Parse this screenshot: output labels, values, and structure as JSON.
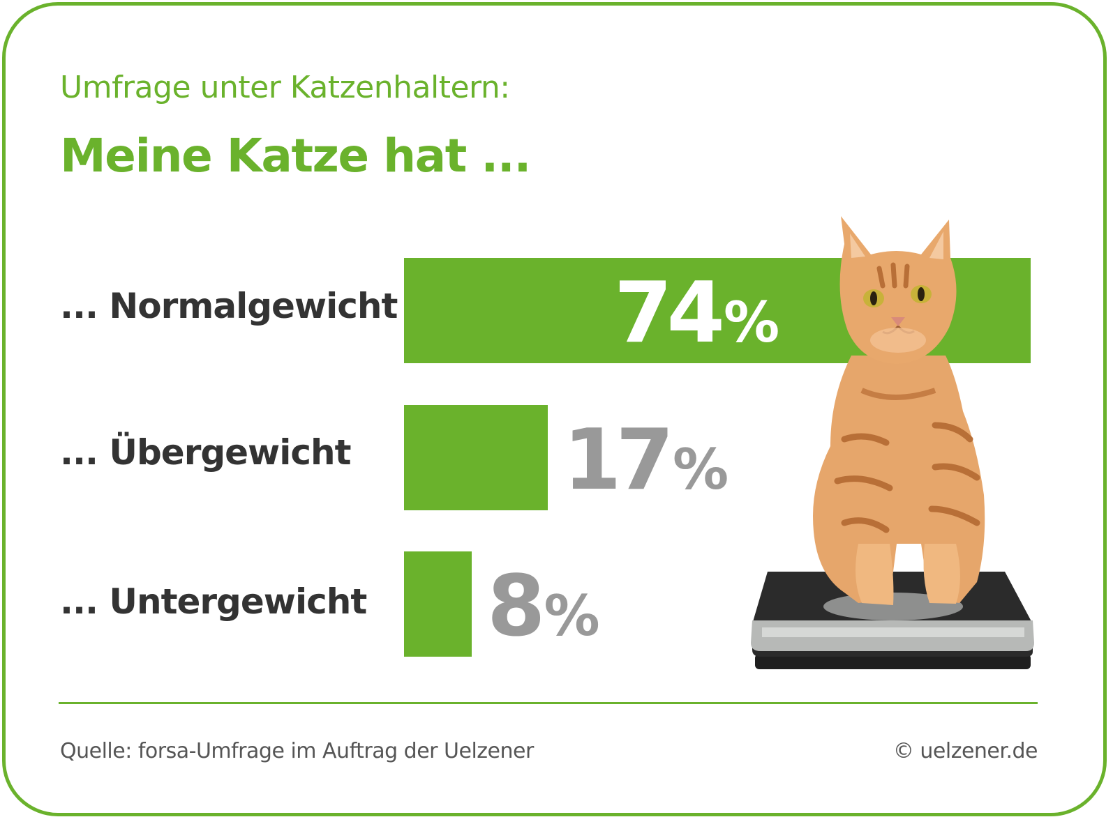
{
  "header": {
    "subtitle": "Umfrage unter Katzenhaltern:",
    "title": "Meine Katze hat ..."
  },
  "chart_data": {
    "type": "bar",
    "orientation": "horizontal",
    "title": "Meine Katze hat ...",
    "subtitle": "Umfrage unter Katzenhaltern:",
    "categories": [
      "... Normalgewicht",
      "... Übergewicht",
      "... Untergewicht"
    ],
    "values": [
      74,
      17,
      8
    ],
    "value_labels": [
      {
        "number": "74",
        "unit": "%"
      },
      {
        "number": "17",
        "unit": "%"
      },
      {
        "number": "8",
        "unit": "%"
      }
    ],
    "xlim": [
      0,
      74
    ],
    "grid": false,
    "colors": {
      "bar": "#6ab22c",
      "label_inside": "#ffffff",
      "label_outside": "#999999",
      "category_text": "#333333",
      "border": "#6ab22c"
    }
  },
  "illustration": {
    "icon": "cat-on-scale-icon"
  },
  "footer": {
    "source": "Quelle: forsa-Umfrage im Auftrag der Uelzener",
    "copyright": "© uelzener.de"
  }
}
